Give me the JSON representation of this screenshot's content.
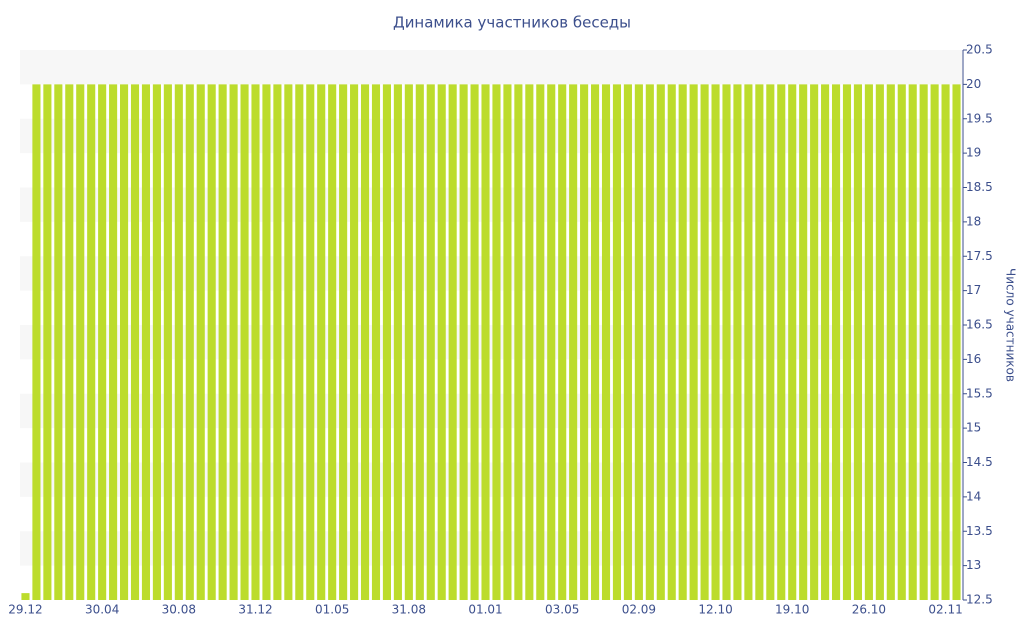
{
  "chart_data": {
    "type": "bar",
    "title": "Динамика участников беседы",
    "y_label": "Число участников",
    "color": "#bcdc2c",
    "ylim": [
      12.5,
      20.5
    ],
    "yticks": [
      12.5,
      13,
      13.5,
      14,
      14.5,
      15,
      15.5,
      16,
      16.5,
      17,
      17.5,
      18,
      18.5,
      19,
      19.5,
      20,
      20.5
    ],
    "categories": [
      "29.12",
      null,
      null,
      null,
      null,
      null,
      null,
      "30.04",
      null,
      null,
      null,
      null,
      null,
      null,
      "30.08",
      null,
      null,
      null,
      null,
      null,
      null,
      "31.12",
      null,
      null,
      null,
      null,
      null,
      null,
      "01.05",
      null,
      null,
      null,
      null,
      null,
      null,
      "31.08",
      null,
      null,
      null,
      null,
      null,
      null,
      "01.01",
      null,
      null,
      null,
      null,
      null,
      null,
      "03.05",
      null,
      null,
      null,
      null,
      null,
      null,
      "02.09",
      null,
      null,
      null,
      null,
      null,
      null,
      "12.10",
      null,
      null,
      null,
      null,
      null,
      null,
      "19.10",
      null,
      null,
      null,
      null,
      null,
      null,
      "26.10",
      null,
      null,
      null,
      null,
      null,
      null,
      "02.11",
      null
    ],
    "values": [
      12.6,
      20,
      20,
      20,
      20,
      20,
      20,
      20,
      20,
      20,
      20,
      20,
      20,
      20,
      20,
      20,
      20,
      20,
      20,
      20,
      20,
      20,
      20,
      20,
      20,
      20,
      20,
      20,
      20,
      20,
      20,
      20,
      20,
      20,
      20,
      20,
      20,
      20,
      20,
      20,
      20,
      20,
      20,
      20,
      20,
      20,
      20,
      20,
      20,
      20,
      20,
      20,
      20,
      20,
      20,
      20,
      20,
      20,
      20,
      20,
      20,
      20,
      20,
      20,
      20,
      20,
      20,
      20,
      20,
      20,
      20,
      20,
      20,
      20,
      20,
      20,
      20,
      20,
      20,
      20,
      20,
      20,
      20,
      20,
      20,
      20
    ]
  }
}
